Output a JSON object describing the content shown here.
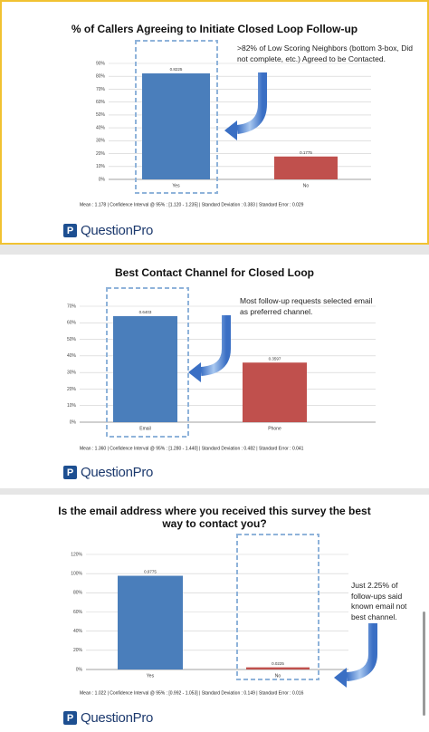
{
  "chart_data": [
    {
      "type": "bar",
      "title": "% of Callers Agreeing to Initiate Closed Loop Follow-up",
      "annotation": ">82% of Low Scoring Neighbors (bottom 3-box, Did not complete, etc.) Agreed to be Contacted.",
      "categories": [
        "Yes",
        "No"
      ],
      "values": [
        82.25,
        17.75
      ],
      "value_labels": [
        "0.8225",
        "0.1775"
      ],
      "colors": [
        "#4a7ebb",
        "#c0504d"
      ],
      "ylim": [
        0,
        90
      ],
      "yticks": [
        {
          "value": 0,
          "label": "0%"
        },
        {
          "value": 10,
          "label": "10%"
        },
        {
          "value": 20,
          "label": "20%"
        },
        {
          "value": 30,
          "label": "30%"
        },
        {
          "value": 40,
          "label": "40%"
        },
        {
          "value": 50,
          "label": "50%"
        },
        {
          "value": 60,
          "label": "60%"
        },
        {
          "value": 70,
          "label": "70%"
        },
        {
          "value": 80,
          "label": "80%"
        },
        {
          "value": 90,
          "label": "90%"
        }
      ],
      "grid": true,
      "footer": "Mean : 1.178  |  Confidence Interval @ 95% : [1.120 - 1.235]  |  Standard Deviation : 0.383  |  Standard Error : 0.029",
      "brand": "QuestionPro"
    },
    {
      "type": "bar",
      "title": "Best Contact Channel for Closed Loop",
      "annotation": "Most follow-up requests selected email as preferred channel.",
      "categories": [
        "Email",
        "Phone"
      ],
      "values": [
        64.03,
        35.97
      ],
      "value_labels": [
        "0.6403",
        "0.3597"
      ],
      "colors": [
        "#4a7ebb",
        "#c0504d"
      ],
      "ylim": [
        0,
        70
      ],
      "yticks": [
        {
          "value": 0,
          "label": "0%"
        },
        {
          "value": 10,
          "label": "10%"
        },
        {
          "value": 20,
          "label": "20%"
        },
        {
          "value": 30,
          "label": "30%"
        },
        {
          "value": 40,
          "label": "40%"
        },
        {
          "value": 50,
          "label": "50%"
        },
        {
          "value": 60,
          "label": "60%"
        },
        {
          "value": 70,
          "label": "70%"
        }
      ],
      "grid": true,
      "footer": "Mean : 1.360  |  Confidence Interval @ 95% : [1.280 - 1.440]  |  Standard Deviation : 0.482  |  Standard Error : 0.041",
      "brand": "QuestionPro"
    },
    {
      "type": "bar",
      "title": "Is the email address where you received this survey the best way to contact you?",
      "annotation": "Just 2.25% of follow-ups said known email not best channel.",
      "categories": [
        "Yes",
        "No"
      ],
      "values": [
        97.75,
        2.25
      ],
      "value_labels": [
        "0.9775",
        "0.0225"
      ],
      "colors": [
        "#4a7ebb",
        "#c0504d"
      ],
      "ylim": [
        0,
        120
      ],
      "yticks": [
        {
          "value": 0,
          "label": "0%"
        },
        {
          "value": 20,
          "label": "20%"
        },
        {
          "value": 40,
          "label": "40%"
        },
        {
          "value": 60,
          "label": "60%"
        },
        {
          "value": 80,
          "label": "80%"
        },
        {
          "value": 100,
          "label": "100%"
        },
        {
          "value": 120,
          "label": "120%"
        }
      ],
      "grid": true,
      "footer": "Mean : 1.022  |  Confidence Interval @ 95% : [0.992 - 1.053]  |  Standard Deviation : 0.149  |  Standard Error : 0.016",
      "brand": "QuestionPro"
    }
  ]
}
